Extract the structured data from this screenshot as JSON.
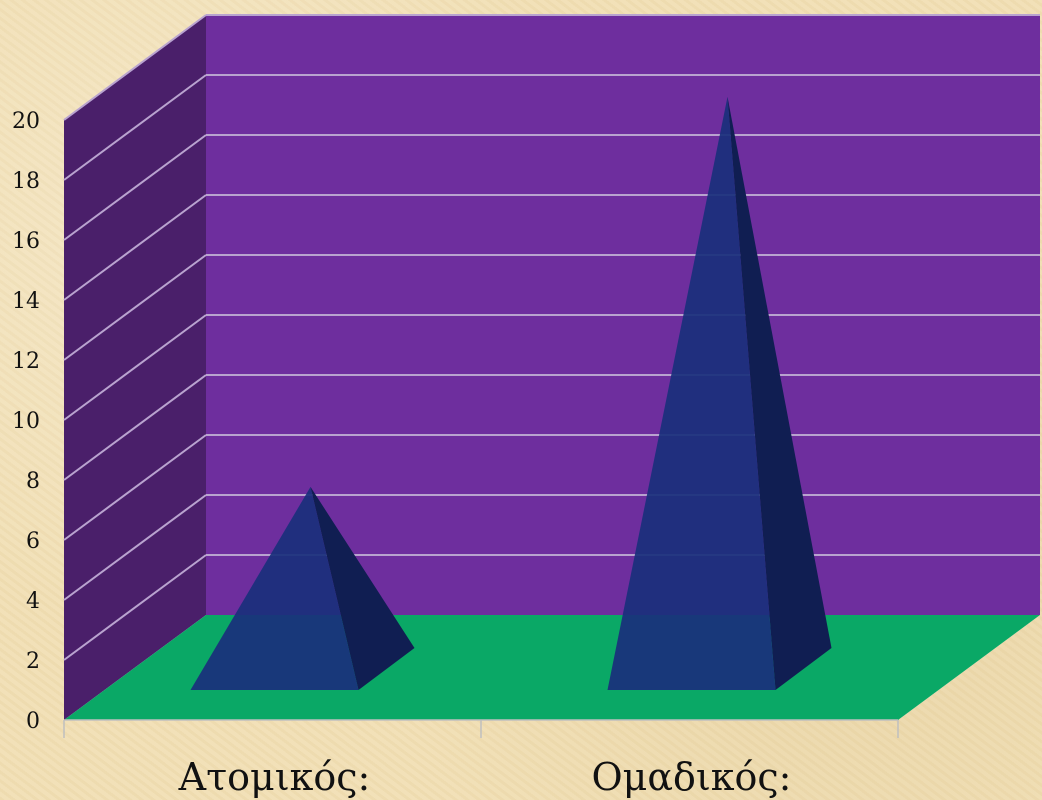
{
  "colors": {
    "back_wall": "#6e2e9e",
    "side_wall": "#4a1f6a",
    "floor": "#0aa866",
    "plot_background": "#ffffff",
    "gridline": "#b9a3cf",
    "pyramid_front": "#1a2f7c",
    "pyramid_side": "#101e52",
    "axis_line": "#bfbfbf",
    "text": "#111111"
  },
  "chart_data": {
    "type": "bar",
    "bar_shape": "pyramid",
    "three_d": true,
    "categories": [
      "Ατομικός:",
      "Ομαδικός:"
    ],
    "values": [
      7,
      20
    ],
    "ylim": [
      0,
      20
    ],
    "yticks": [
      0,
      2,
      4,
      6,
      8,
      10,
      12,
      14,
      16,
      18,
      20
    ],
    "ytick_labels": [
      "0",
      "2",
      "4",
      "6",
      "8",
      "10",
      "12",
      "14",
      "16",
      "18",
      "20"
    ],
    "grid": true,
    "legend": "none"
  }
}
